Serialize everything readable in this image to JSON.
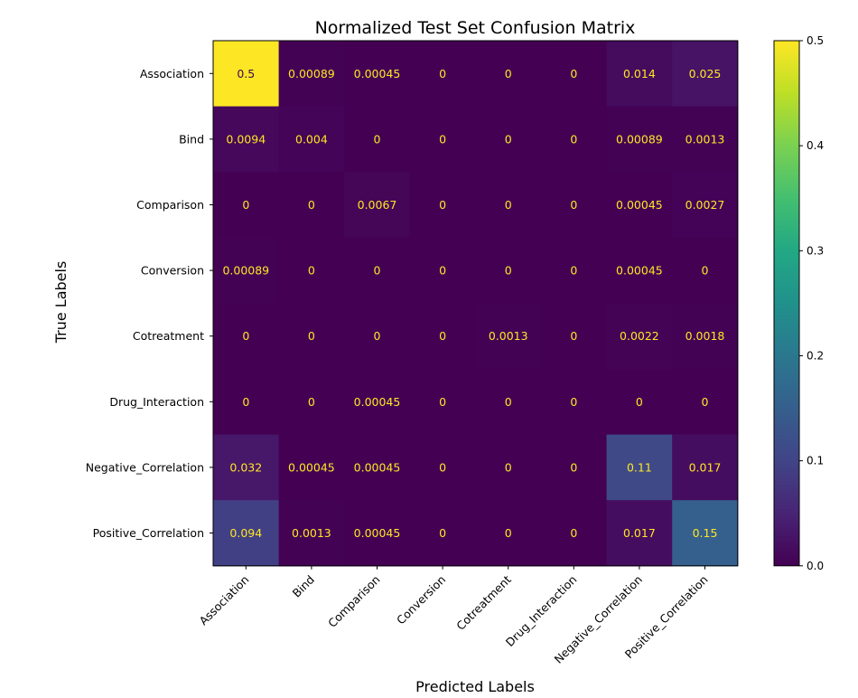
{
  "chart_data": {
    "type": "heatmap",
    "title": "Normalized Test Set Confusion Matrix",
    "xlabel": "Predicted Labels",
    "ylabel": "True Labels",
    "x_categories": [
      "Association",
      "Bind",
      "Comparison",
      "Conversion",
      "Cotreatment",
      "Drug_Interaction",
      "Negative_Correlation",
      "Positive_Correlation"
    ],
    "y_categories": [
      "Association",
      "Bind",
      "Comparison",
      "Conversion",
      "Cotreatment",
      "Drug_Interaction",
      "Negative_Correlation",
      "Positive_Correlation"
    ],
    "values": [
      [
        0.5,
        0.00089,
        0.00045,
        0,
        0,
        0,
        0.014,
        0.025
      ],
      [
        0.0094,
        0.004,
        0,
        0,
        0,
        0,
        0.00089,
        0.0013
      ],
      [
        0,
        0,
        0.0067,
        0,
        0,
        0,
        0.00045,
        0.0027
      ],
      [
        0.00089,
        0,
        0,
        0,
        0,
        0,
        0.00045,
        0
      ],
      [
        0,
        0,
        0,
        0,
        0.0013,
        0,
        0.0022,
        0.0018
      ],
      [
        0,
        0,
        0.00045,
        0,
        0,
        0,
        0,
        0
      ],
      [
        0.032,
        0.00045,
        0.00045,
        0,
        0,
        0,
        0.11,
        0.017
      ],
      [
        0.094,
        0.0013,
        0.00045,
        0,
        0,
        0,
        0.017,
        0.15
      ]
    ],
    "value_labels": [
      [
        "0.5",
        "0.00089",
        "0.00045",
        "0",
        "0",
        "0",
        "0.014",
        "0.025"
      ],
      [
        "0.0094",
        "0.004",
        "0",
        "0",
        "0",
        "0",
        "0.00089",
        "0.0013"
      ],
      [
        "0",
        "0",
        "0.0067",
        "0",
        "0",
        "0",
        "0.00045",
        "0.0027"
      ],
      [
        "0.00089",
        "0",
        "0",
        "0",
        "0",
        "0",
        "0.00045",
        "0"
      ],
      [
        "0",
        "0",
        "0",
        "0",
        "0.0013",
        "0",
        "0.0022",
        "0.0018"
      ],
      [
        "0",
        "0",
        "0.00045",
        "0",
        "0",
        "0",
        "0",
        "0"
      ],
      [
        "0.032",
        "0.00045",
        "0.00045",
        "0",
        "0",
        "0",
        "0.11",
        "0.017"
      ],
      [
        "0.094",
        "0.0013",
        "0.00045",
        "0",
        "0",
        "0",
        "0.017",
        "0.15"
      ]
    ],
    "colormap": "viridis",
    "colorbar": {
      "range": [
        0,
        0.5
      ],
      "ticks": [
        0.0,
        0.1,
        0.2,
        0.3,
        0.4,
        0.5
      ],
      "tick_labels": [
        "0.0",
        "0.1",
        "0.2",
        "0.3",
        "0.4",
        "0.5"
      ]
    },
    "text_colors": {
      "on_dark": "#fde725",
      "on_light": "#440154"
    }
  }
}
